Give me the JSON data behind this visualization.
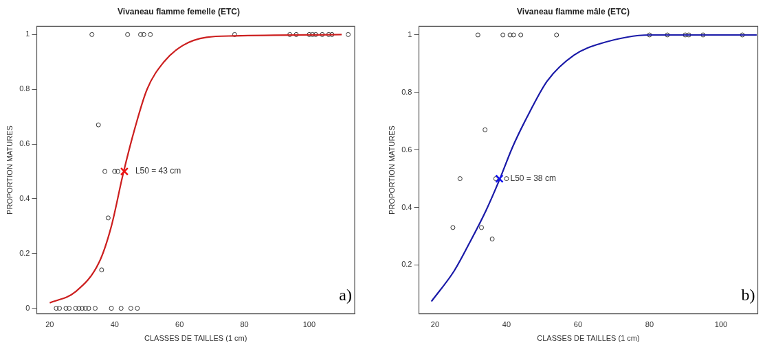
{
  "chart_data": [
    {
      "type": "scatter",
      "title": "Vivaneau flamme femelle (ETC)",
      "xlabel": "CLASSES DE TAILLES (1 cm)",
      "ylabel": "PROPORTION MATURES",
      "xlim": [
        16,
        114
      ],
      "ylim": [
        -0.02,
        1.03
      ],
      "xticks": [
        20,
        40,
        60,
        80,
        100
      ],
      "yticks": [
        0,
        0.2,
        0.4,
        0.6,
        0.8,
        1.0
      ],
      "grid": false,
      "legend": false,
      "annotations": [
        {
          "text": "L50 = 43 cm",
          "x": 43,
          "y": 0.5
        },
        "a)"
      ],
      "series": [
        {
          "type": "scatter",
          "marker": "circle",
          "color": "#333333",
          "x": [
            33,
            44,
            48,
            49,
            51,
            77,
            94,
            96,
            100,
            101,
            102,
            104,
            106,
            107,
            112,
            35,
            37,
            40,
            41,
            38,
            36,
            22,
            23,
            25,
            26,
            28,
            29,
            30,
            31,
            32,
            34,
            39,
            42,
            45,
            47
          ],
          "values": [
            1,
            1,
            1,
            1,
            1,
            1,
            1,
            1,
            1,
            1,
            1,
            1,
            1,
            1,
            1,
            0.67,
            0.5,
            0.5,
            0.5,
            0.33,
            0.14,
            0,
            0,
            0,
            0,
            0,
            0,
            0,
            0,
            0,
            0,
            0,
            0,
            0,
            0
          ]
        },
        {
          "type": "line",
          "marker": "none",
          "color": "#cc1f1f",
          "x": [
            20,
            27.9,
            35.3,
            39,
            42.6,
            46.3,
            50,
            55.2,
            61,
            68.4,
            77,
            110
          ],
          "values": [
            0.02,
            0.06,
            0.17,
            0.3,
            0.49,
            0.66,
            0.8,
            0.9,
            0.96,
            0.99,
            0.995,
            1.0
          ]
        },
        {
          "type": "scatter",
          "marker": "cross",
          "color": "#ee1111",
          "x": [
            43
          ],
          "values": [
            0.5
          ]
        }
      ]
    },
    {
      "type": "scatter",
      "title": "Vivaneau flamme mâle (ETC)",
      "xlabel": "CLASSES DE TAILLES (1 cm)",
      "ylabel": "PROPORTION MATURES",
      "xlim": [
        15.5,
        110.3
      ],
      "ylim": [
        0.03,
        1.03
      ],
      "xticks": [
        20,
        40,
        60,
        80,
        100
      ],
      "yticks": [
        0.2,
        0.4,
        0.6,
        0.8,
        1.0
      ],
      "grid": false,
      "legend": false,
      "annotations": [
        {
          "text": "L50 = 38 cm",
          "x": 38,
          "y": 0.5
        },
        "b)"
      ],
      "series": [
        {
          "type": "scatter",
          "marker": "circle",
          "color": "#333333",
          "x": [
            32,
            39,
            41,
            42,
            44,
            54,
            80,
            85,
            90,
            91,
            95,
            106,
            34,
            27,
            37,
            40,
            25,
            33,
            36
          ],
          "values": [
            1,
            1,
            1,
            1,
            1,
            1,
            1,
            1,
            1,
            1,
            1,
            1,
            0.67,
            0.5,
            0.5,
            0.5,
            0.33,
            0.33,
            0.29
          ]
        },
        {
          "type": "line",
          "marker": "none",
          "color": "#1a1aa8",
          "x": [
            19,
            25.4,
            29.8,
            34.3,
            38,
            41.7,
            46.2,
            51.4,
            58.9,
            66.3,
            80,
            110
          ],
          "values": [
            0.073,
            0.18,
            0.28,
            0.39,
            0.495,
            0.61,
            0.725,
            0.84,
            0.93,
            0.97,
            1.0,
            1.0
          ]
        },
        {
          "type": "scatter",
          "marker": "cross",
          "color": "#1111ee",
          "x": [
            38
          ],
          "values": [
            0.5
          ]
        }
      ]
    }
  ]
}
